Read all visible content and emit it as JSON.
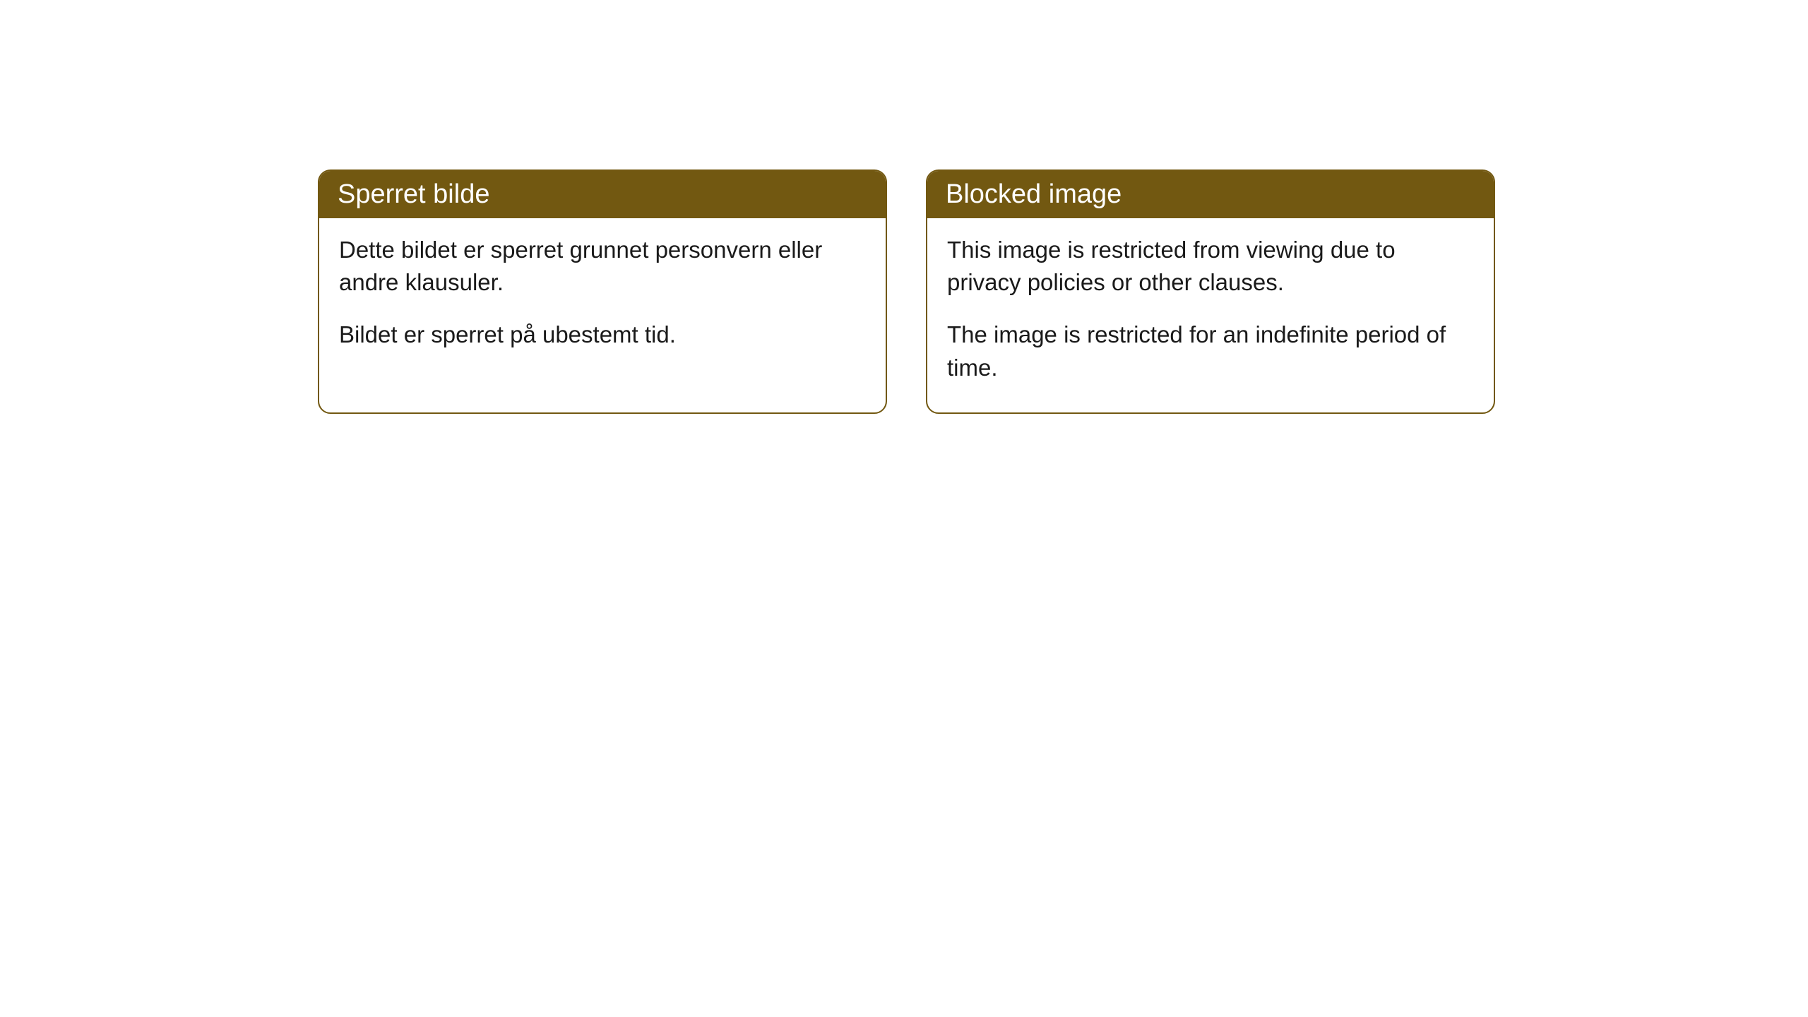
{
  "cards": [
    {
      "title": "Sperret bilde",
      "paragraphs": [
        "Dette bildet er sperret grunnet personvern eller andre klausuler.",
        "Bildet er sperret på ubestemt tid."
      ]
    },
    {
      "title": "Blocked image",
      "paragraphs": [
        "This image is restricted from viewing due to privacy policies or other clauses.",
        "The image is restricted for an indefinite period of time."
      ]
    }
  ],
  "styling": {
    "header_bg_color": "#725811",
    "header_text_color": "#ffffff",
    "border_color": "#725811",
    "body_text_color": "#1a1a1a",
    "background_color": "#ffffff",
    "border_radius": 18,
    "header_font_size": 38,
    "body_font_size": 33
  }
}
